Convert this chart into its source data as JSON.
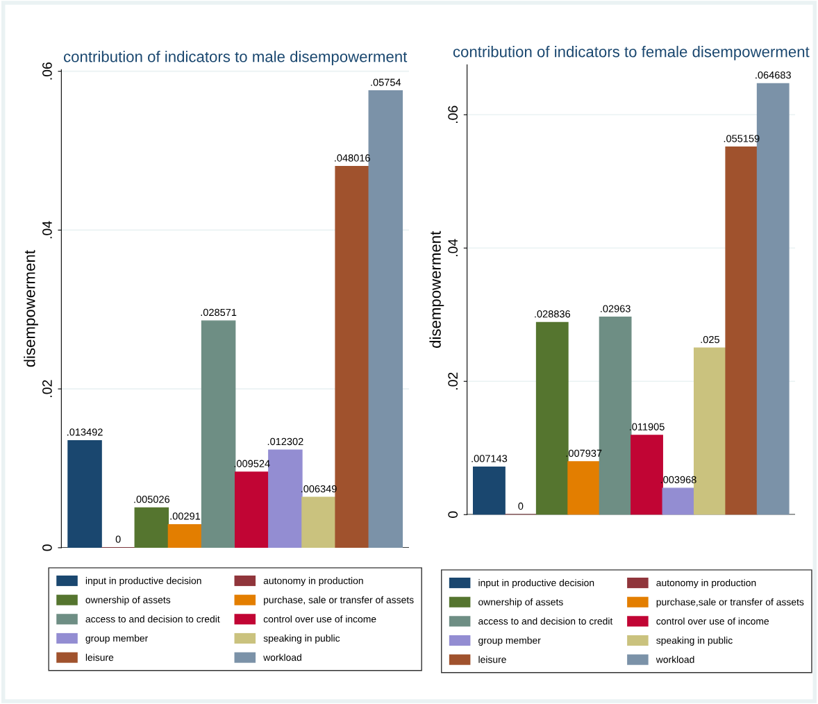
{
  "chart_data": [
    {
      "type": "bar",
      "title": "contribution of indicators to male disempowerment",
      "ylabel": "disempowerment",
      "categories": [
        null
      ],
      "ylim": [
        0,
        0.0602
      ],
      "yticks": [
        0,
        {
          "value": 0.02,
          "label": ".02"
        },
        {
          "value": 0.04,
          "label": ".04"
        },
        {
          "value": 0.06,
          "label": ".06"
        }
      ],
      "grid": "y",
      "legend": "bottom",
      "series": [
        {
          "name": "input in productive decision",
          "color": "#1a476f",
          "values": [
            0.013492
          ],
          "value_labels": [
            ".013492"
          ]
        },
        {
          "name": "autonomy in production",
          "color": "#90353b",
          "values": [
            0
          ],
          "value_labels": [
            "0"
          ]
        },
        {
          "name": "ownership of assets",
          "color": "#55752f",
          "values": [
            0.005026
          ],
          "value_labels": [
            ".005026"
          ]
        },
        {
          "name": "purchase, sale or transfer of assets",
          "color": "#e37e00",
          "values": [
            0.00291
          ],
          "value_labels": [
            ".00291"
          ]
        },
        {
          "name": "access to and decision to credit",
          "color": "#6e8e84",
          "values": [
            0.028571
          ],
          "value_labels": [
            ".028571"
          ]
        },
        {
          "name": "control over use of income",
          "color": "#c10534",
          "values": [
            0.009524
          ],
          "value_labels": [
            ".009524"
          ]
        },
        {
          "name": "group member",
          "color": "#938dd2",
          "values": [
            0.012302
          ],
          "value_labels": [
            ".012302"
          ]
        },
        {
          "name": "speaking in public",
          "color": "#cac27e",
          "values": [
            0.006349
          ],
          "value_labels": [
            ".006349"
          ]
        },
        {
          "name": "leisure",
          "color": "#a0522d",
          "values": [
            0.048016
          ],
          "value_labels": [
            ".048016"
          ]
        },
        {
          "name": "workload",
          "color": "#7b92a8",
          "values": [
            0.05754
          ],
          "value_labels": [
            ".05754"
          ]
        }
      ]
    },
    {
      "type": "bar",
      "title": "contribution of indicators to female disempowerment",
      "ylabel": "disempowerment",
      "categories": [
        null
      ],
      "ylim": [
        0,
        0.0675
      ],
      "yticks": [
        0,
        {
          "value": 0.02,
          "label": ".02"
        },
        {
          "value": 0.04,
          "label": ".04"
        },
        {
          "value": 0.06,
          "label": ".06"
        }
      ],
      "grid": "y",
      "legend": "bottom",
      "series": [
        {
          "name": "input in productive decision",
          "color": "#1a476f",
          "values": [
            0.007143
          ],
          "value_labels": [
            ".007143"
          ]
        },
        {
          "name": "autonomy in production",
          "color": "#90353b",
          "values": [
            0
          ],
          "value_labels": [
            "0"
          ]
        },
        {
          "name": "ownership of assets",
          "color": "#55752f",
          "values": [
            0.028836
          ],
          "value_labels": [
            ".028836"
          ]
        },
        {
          "name": "purchase,sale or transfer of assets",
          "color": "#e37e00",
          "values": [
            0.007937
          ],
          "value_labels": [
            ".007937"
          ]
        },
        {
          "name": "access to and decision to credit",
          "color": "#6e8e84",
          "values": [
            0.02963
          ],
          "value_labels": [
            ".02963"
          ]
        },
        {
          "name": "control over use of income",
          "color": "#c10534",
          "values": [
            0.011905
          ],
          "value_labels": [
            ".011905"
          ]
        },
        {
          "name": "group member",
          "color": "#938dd2",
          "values": [
            0.003968
          ],
          "value_labels": [
            ".003968"
          ]
        },
        {
          "name": "speaking in public",
          "color": "#cac27e",
          "values": [
            0.025
          ],
          "value_labels": [
            ".025"
          ]
        },
        {
          "name": "leisure",
          "color": "#a0522d",
          "values": [
            0.055159
          ],
          "value_labels": [
            ".055159"
          ]
        },
        {
          "name": "workload",
          "color": "#7b92a8",
          "values": [
            0.064683
          ],
          "value_labels": [
            ".064683"
          ]
        }
      ]
    }
  ]
}
